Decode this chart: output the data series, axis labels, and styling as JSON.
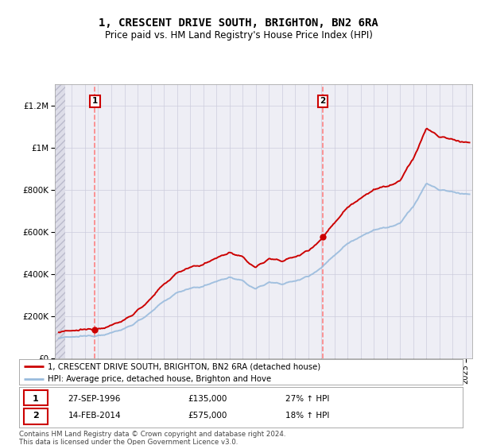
{
  "title": "1, CRESCENT DRIVE SOUTH, BRIGHTON, BN2 6RA",
  "subtitle": "Price paid vs. HM Land Registry's House Price Index (HPI)",
  "ylabel_ticks": [
    "£0",
    "£200K",
    "£400K",
    "£600K",
    "£800K",
    "£1M",
    "£1.2M"
  ],
  "ytick_values": [
    0,
    200000,
    400000,
    600000,
    800000,
    1000000,
    1200000
  ],
  "ylim": [
    0,
    1300000
  ],
  "xlim_start": 1993.7,
  "xlim_end": 2025.5,
  "sale1_year": 1996.75,
  "sale1_price": 135000,
  "sale1_label": "1",
  "sale1_date": "27-SEP-1996",
  "sale1_pct": "27% ↑ HPI",
  "sale2_year": 2014.12,
  "sale2_price": 575000,
  "sale2_label": "2",
  "sale2_date": "14-FEB-2014",
  "sale2_pct": "18% ↑ HPI",
  "sale_color": "#cc0000",
  "dashed_color": "#ff7777",
  "legend_sale_label": "1, CRESCENT DRIVE SOUTH, BRIGHTON, BN2 6RA (detached house)",
  "legend_hpi_label": "HPI: Average price, detached house, Brighton and Hove",
  "footer": "Contains HM Land Registry data © Crown copyright and database right 2024.\nThis data is licensed under the Open Government Licence v3.0.",
  "bg_color": "#ffffff",
  "plot_bg_color": "#eeeef5",
  "hatch_bg_color": "#dddde8",
  "grid_color": "#ccccdd",
  "sale_line_color": "#cc0000",
  "hpi_line_color": "#99bbdd"
}
